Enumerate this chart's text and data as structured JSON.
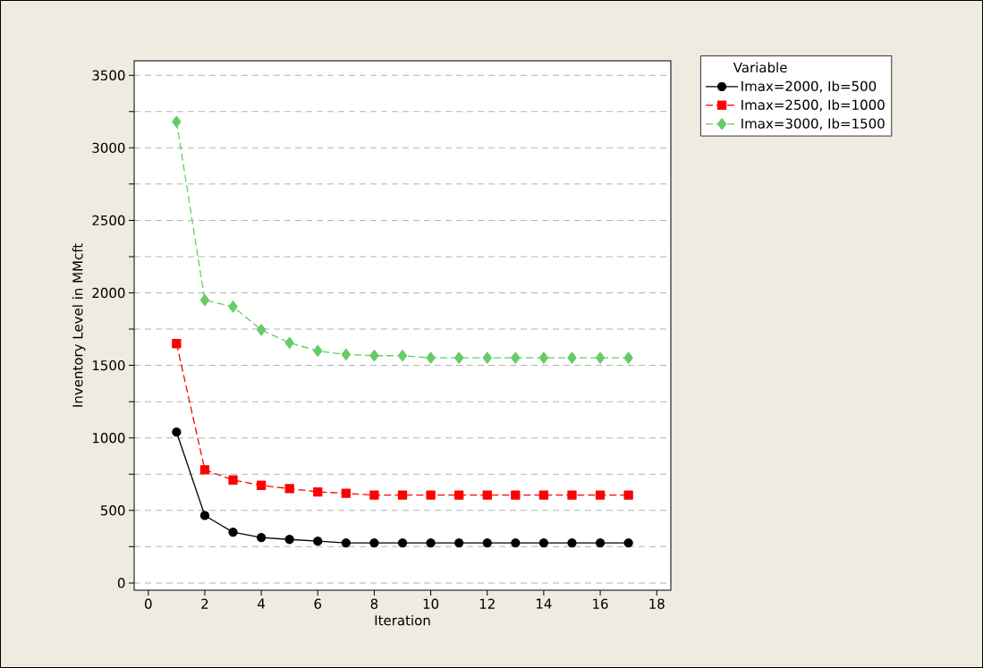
{
  "chart_data": {
    "type": "line",
    "xlabel": "Iteration",
    "ylabel": "Inventory Level in MMcft",
    "legend_title": "Variable",
    "x": [
      1,
      2,
      3,
      4,
      5,
      6,
      7,
      8,
      9,
      10,
      11,
      12,
      13,
      14,
      15,
      16,
      17
    ],
    "series": [
      {
        "name": "Imax=2000, Ib=500",
        "color": "#000000",
        "marker": "circle",
        "line_style": "solid",
        "values": [
          1040,
          465,
          350,
          313,
          300,
          288,
          276,
          276,
          276,
          276,
          276,
          276,
          276,
          276,
          276,
          276,
          276
        ]
      },
      {
        "name": "Imax=2500, Ib=1000",
        "color": "#ff0000",
        "marker": "square",
        "line_style": "dashed",
        "values": [
          1650,
          780,
          710,
          673,
          650,
          628,
          618,
          606,
          606,
          606,
          606,
          606,
          606,
          606,
          606,
          606,
          606
        ]
      },
      {
        "name": "Imax=3000, Ib=1500",
        "color": "#66cc66",
        "marker": "diamond",
        "line_style": "dashed",
        "values": [
          3180,
          1950,
          1905,
          1745,
          1655,
          1600,
          1575,
          1567,
          1567,
          1552,
          1552,
          1552,
          1552,
          1552,
          1552,
          1552,
          1552
        ]
      }
    ],
    "xlim": [
      -0.5,
      18.5
    ],
    "ylim": [
      -50,
      3600
    ],
    "xticks": [
      0,
      2,
      4,
      6,
      8,
      10,
      12,
      14,
      16,
      18
    ],
    "yticks": [
      0,
      {
        "value": 250,
        "label": null
      },
      500,
      {
        "value": 750,
        "label": null
      },
      1000,
      {
        "value": 1250,
        "label": null
      },
      1500,
      {
        "value": 1750,
        "label": null
      },
      2000,
      {
        "value": 2250,
        "label": null
      },
      2500,
      {
        "value": 2750,
        "label": null
      },
      3000,
      {
        "value": 3250,
        "label": null
      },
      3500
    ],
    "grid": "y",
    "legend": "top right"
  }
}
